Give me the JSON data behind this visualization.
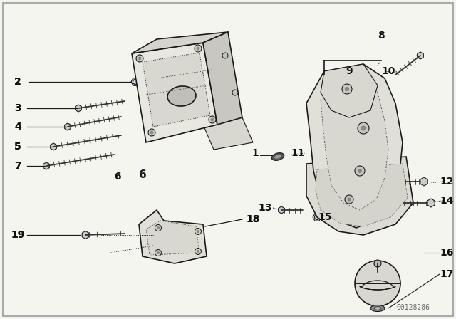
{
  "bg_color": "#f5f5f0",
  "line_color": "#1a1a1a",
  "label_color": "#111111",
  "watermark": "00128286",
  "figsize": [
    6.4,
    4.48
  ],
  "dpi": 100
}
